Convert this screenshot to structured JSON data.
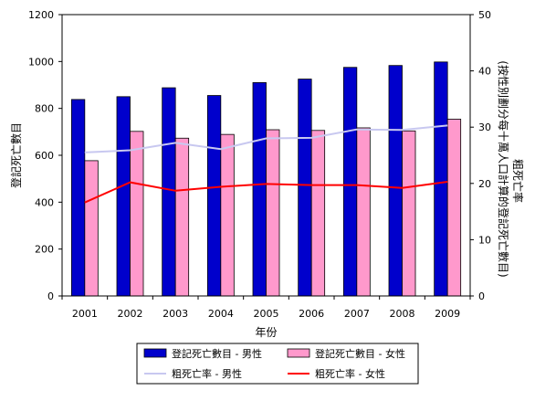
{
  "chart_data": {
    "type": "bar",
    "categories": [
      "2001",
      "2002",
      "2003",
      "2004",
      "2005",
      "2006",
      "2007",
      "2008",
      "2009"
    ],
    "xlabel": "年份",
    "ylabel": "登記死亡數目",
    "y2label_line1": "粗死亡率",
    "y2label_line2": "(按性別劃分每十萬人口計算的登記死亡數目)",
    "ylim": [
      0,
      1200
    ],
    "y2lim": [
      0,
      50
    ],
    "yticks": [
      0,
      200,
      400,
      600,
      800,
      1000,
      1200
    ],
    "y2ticks": [
      0,
      10,
      20,
      30,
      40,
      50
    ],
    "grid": false,
    "legend_position": "bottom",
    "series": [
      {
        "name": "登記死亡數目 - 男性",
        "kind": "bar",
        "axis": "left",
        "color": "#0000CC",
        "values": [
          838,
          850,
          888,
          855,
          910,
          925,
          975,
          983,
          998
        ]
      },
      {
        "name": "登記死亡數目 - 女性",
        "kind": "bar",
        "axis": "left",
        "color": "#FF99CC",
        "values": [
          577,
          702,
          673,
          689,
          709,
          706,
          717,
          704,
          754
        ]
      },
      {
        "name": "粗死亡率 - 男性",
        "kind": "line",
        "axis": "right",
        "color": "#C8C8F0",
        "values": [
          25.5,
          25.9,
          27.2,
          26.1,
          28.0,
          28.1,
          29.6,
          29.5,
          30.3
        ]
      },
      {
        "name": "粗死亡率 - 女性",
        "kind": "line",
        "axis": "right",
        "color": "#FF0000",
        "values": [
          16.6,
          20.2,
          18.7,
          19.4,
          19.9,
          19.7,
          19.7,
          19.2,
          20.3
        ]
      }
    ]
  }
}
